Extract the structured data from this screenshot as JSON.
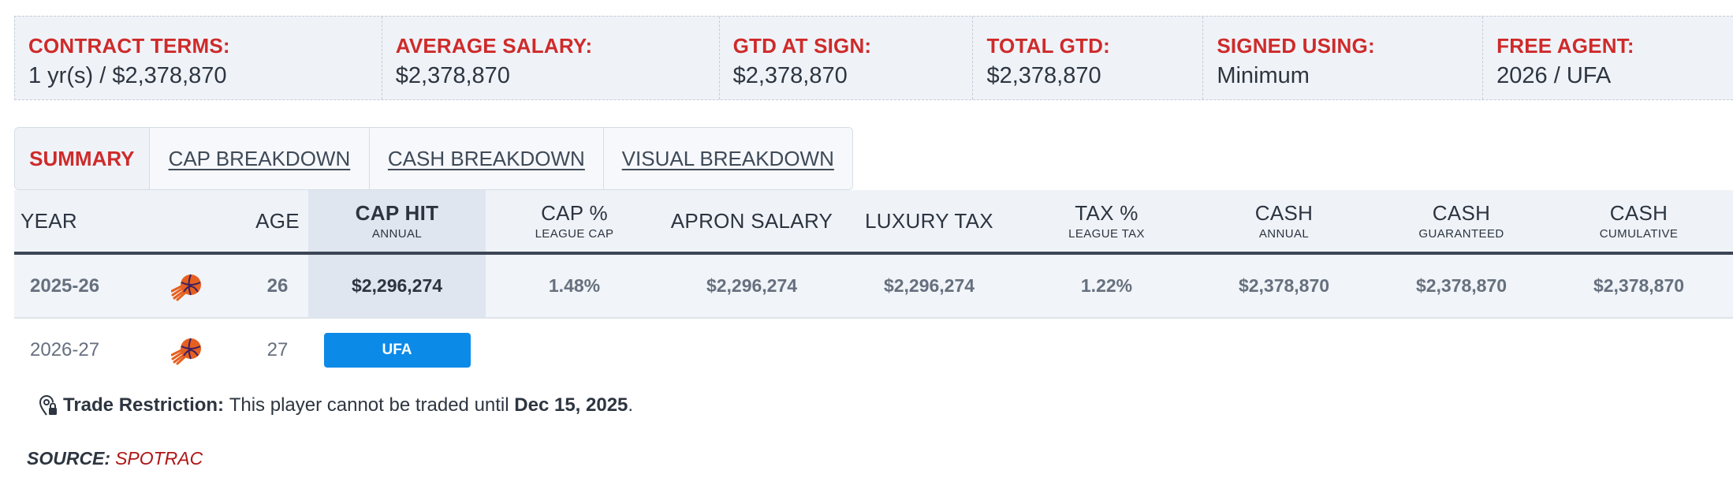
{
  "contract_terms": [
    {
      "label": "CONTRACT TERMS:",
      "value": "1 yr(s) / $2,378,870"
    },
    {
      "label": "AVERAGE SALARY:",
      "value": "$2,378,870"
    },
    {
      "label": "GTD AT SIGN:",
      "value": "$2,378,870"
    },
    {
      "label": "TOTAL GTD:",
      "value": "$2,378,870"
    },
    {
      "label": "SIGNED USING:",
      "value": "Minimum"
    },
    {
      "label": "FREE AGENT:",
      "value": "2026 / UFA"
    }
  ],
  "tabs": [
    {
      "label": "SUMMARY",
      "active": true
    },
    {
      "label": "CAP BREAKDOWN",
      "active": false
    },
    {
      "label": "CASH BREAKDOWN",
      "active": false
    },
    {
      "label": "VISUAL BREAKDOWN",
      "active": false
    }
  ],
  "table": {
    "headers": [
      {
        "main": "YEAR",
        "sub": ""
      },
      {
        "main": "",
        "sub": ""
      },
      {
        "main": "AGE",
        "sub": ""
      },
      {
        "main": "CAP HIT",
        "sub": "ANNUAL"
      },
      {
        "main": "CAP %",
        "sub": "LEAGUE CAP"
      },
      {
        "main": "APRON SALARY",
        "sub": ""
      },
      {
        "main": "LUXURY TAX",
        "sub": ""
      },
      {
        "main": "TAX %",
        "sub": "LEAGUE TAX"
      },
      {
        "main": "CASH",
        "sub": "ANNUAL"
      },
      {
        "main": "CASH",
        "sub": "GUARANTEED"
      },
      {
        "main": "CASH",
        "sub": "CUMULATIVE"
      }
    ],
    "rows": [
      {
        "year": "2025-26",
        "team_logo": "suns-logo-icon",
        "age": "26",
        "cap_hit": "$2,296,274",
        "cap_pct": "1.48%",
        "apron_salary": "$2,296,274",
        "luxury_tax": "$2,296,274",
        "tax_pct": "1.22%",
        "cash_annual": "$2,378,870",
        "cash_guaranteed": "$2,378,870",
        "cash_cumulative": "$2,378,870"
      },
      {
        "year": "2026-27",
        "team_logo": "suns-logo-icon",
        "age": "27",
        "status_badge": "UFA"
      }
    ]
  },
  "trade_restriction": {
    "icon": "location-lock-icon",
    "label": "Trade Restriction:",
    "text": "This player cannot be traded until",
    "date": "Dec 15, 2025",
    "suffix": "."
  },
  "source": {
    "label": "SOURCE:",
    "value": "SPOTRAC"
  },
  "colors": {
    "accent_red": "#cf2a2a",
    "badge_blue": "#0b8ae8",
    "header_bg": "#eff3f8",
    "cap_hit_highlight": "#dfe6f0",
    "source_red": "#b01515"
  }
}
